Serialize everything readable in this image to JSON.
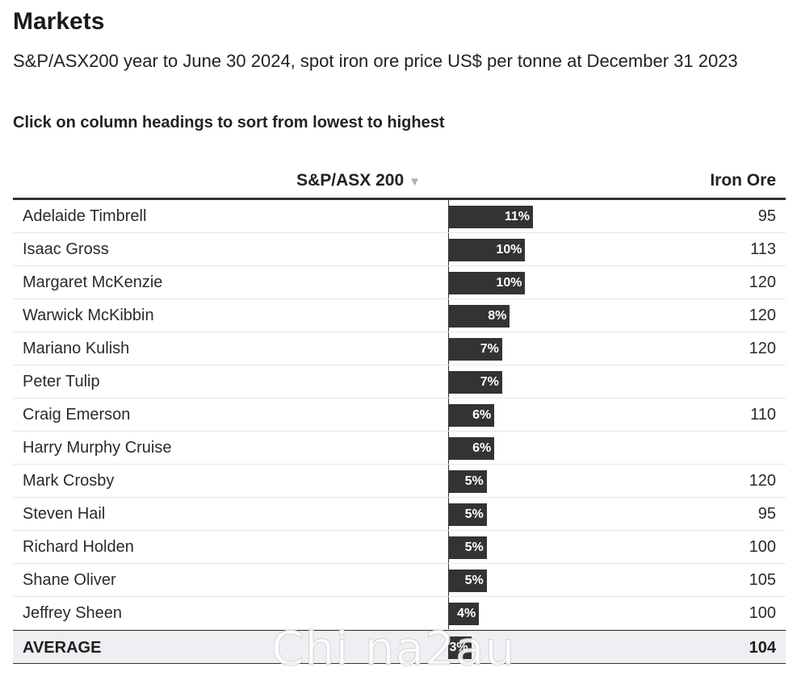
{
  "title": "Markets",
  "subtitle": "S&P/ASX200 year to June 30 2024, spot iron ore price US$ per tonne at December 31 2023",
  "instruction": "Click on column headings to sort from lowest to highest",
  "watermark": "Chi na2au",
  "colors": {
    "bar": "#333333",
    "header_rule": "#333333",
    "average_bg": "#eeeef3",
    "sort_icon": "#b0b0b0"
  },
  "icons": {
    "sort": "sort-down-triangle-icon"
  },
  "chart_data": {
    "type": "table",
    "columns": [
      "",
      "S&P/ASX 200",
      "Iron Ore"
    ],
    "sorted_by": "S&P/ASX 200",
    "sort_indicator": "▼",
    "bar_max_percent": 11,
    "rows": [
      {
        "name": "Adelaide Timbrell",
        "sp_asx200": 11,
        "sp_label": "11%",
        "iron_ore": "95"
      },
      {
        "name": "Isaac Gross",
        "sp_asx200": 10,
        "sp_label": "10%",
        "iron_ore": "113"
      },
      {
        "name": "Margaret McKenzie",
        "sp_asx200": 10,
        "sp_label": "10%",
        "iron_ore": "120"
      },
      {
        "name": "Warwick McKibbin",
        "sp_asx200": 8,
        "sp_label": "8%",
        "iron_ore": "120"
      },
      {
        "name": "Mariano Kulish",
        "sp_asx200": 7,
        "sp_label": "7%",
        "iron_ore": "120"
      },
      {
        "name": "Peter Tulip",
        "sp_asx200": 7,
        "sp_label": "7%",
        "iron_ore": ""
      },
      {
        "name": "Craig Emerson",
        "sp_asx200": 6,
        "sp_label": "6%",
        "iron_ore": "110"
      },
      {
        "name": "Harry Murphy Cruise",
        "sp_asx200": 6,
        "sp_label": "6%",
        "iron_ore": ""
      },
      {
        "name": "Mark Crosby",
        "sp_asx200": 5,
        "sp_label": "5%",
        "iron_ore": "120"
      },
      {
        "name": "Steven Hail",
        "sp_asx200": 5,
        "sp_label": "5%",
        "iron_ore": "95"
      },
      {
        "name": "Richard Holden",
        "sp_asx200": 5,
        "sp_label": "5%",
        "iron_ore": "100"
      },
      {
        "name": "Shane Oliver",
        "sp_asx200": 5,
        "sp_label": "5%",
        "iron_ore": "105"
      },
      {
        "name": "Jeffrey Sheen",
        "sp_asx200": 4,
        "sp_label": "4%",
        "iron_ore": "100"
      }
    ],
    "average": {
      "name": "AVERAGE",
      "sp_asx200": 3,
      "sp_label": "3%",
      "iron_ore": "104"
    }
  }
}
